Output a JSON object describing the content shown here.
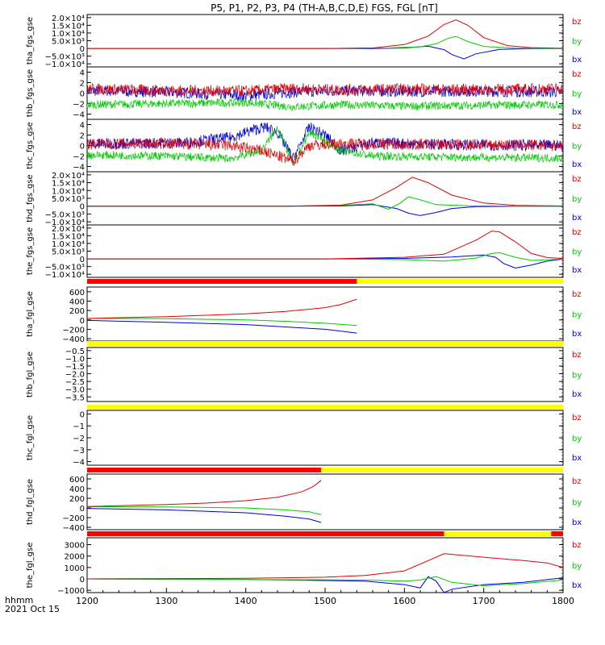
{
  "title": "P5, P1, P2, P3, P4 (TH-A,B,C,D,E) FGS, FGL [nT]",
  "footer": {
    "line1": "hhmm",
    "line2": "2021 Oct 15"
  },
  "colors": {
    "bz": "#e00000",
    "by": "#00cc00",
    "bx": "#0000dd",
    "red_bar": "#ff0000",
    "yellow_bar": "#ffff00",
    "axis": "#000000"
  },
  "chart_data": [
    {
      "type": "line",
      "id": "tha_fgs",
      "ylabel": "tha_fgs_gse",
      "xlim": [
        1200,
        1800
      ],
      "ylim": [
        -12000,
        22000
      ],
      "yticks": [
        -10000,
        -5000,
        0,
        5000,
        10000,
        15000,
        20000
      ],
      "ytick_labels": [
        "−1.0×10⁴",
        "−5.0×10³",
        "0",
        "5.0×10³",
        "1.0×10⁴",
        "1.5×10⁴",
        "2.0×10⁴"
      ],
      "series": [
        {
          "name": "bx",
          "x": [
            1200,
            1500,
            1560,
            1600,
            1630,
            1650,
            1660,
            1675,
            1690,
            1720,
            1760,
            1800
          ],
          "y": [
            0,
            0,
            -150,
            300,
            1500,
            -800,
            -4000,
            -6800,
            -3500,
            -600,
            -100,
            0
          ]
        },
        {
          "name": "by",
          "x": [
            1200,
            1500,
            1580,
            1620,
            1640,
            1655,
            1665,
            1680,
            1700,
            1740,
            1800
          ],
          "y": [
            0,
            0,
            300,
            1000,
            3000,
            6500,
            7800,
            4500,
            1300,
            200,
            0
          ]
        },
        {
          "name": "bz",
          "x": [
            1200,
            1500,
            1560,
            1600,
            1630,
            1650,
            1665,
            1680,
            1700,
            1730,
            1760,
            1800
          ],
          "y": [
            0,
            0,
            300,
            2500,
            8000,
            15500,
            18500,
            15000,
            7000,
            1800,
            500,
            100
          ]
        }
      ]
    },
    {
      "type": "line",
      "id": "thb_fgs",
      "ylabel": "thb_fgs_gse",
      "xlim": [
        1200,
        1800
      ],
      "ylim": [
        -5,
        5
      ],
      "yticks": [
        -4,
        -2,
        0,
        2,
        4
      ],
      "ytick_labels": [
        "−4",
        "−2",
        "0",
        "2",
        "4"
      ],
      "series": [
        {
          "name": "bx",
          "x": [
            1200,
            1300,
            1400,
            1460,
            1520,
            1600,
            1700,
            1800
          ],
          "y": [
            0.5,
            0.2,
            -0.5,
            0.2,
            0.5,
            0.3,
            0.4,
            0.2
          ]
        },
        {
          "name": "by",
          "x": [
            1200,
            1300,
            1400,
            1460,
            1520,
            1600,
            1700,
            1800
          ],
          "y": [
            -2.2,
            -2.0,
            -1.8,
            -2.6,
            -2.2,
            -2.5,
            -2.3,
            -2.2
          ]
        },
        {
          "name": "bz",
          "x": [
            1200,
            1300,
            1400,
            1460,
            1520,
            1600,
            1700,
            1800
          ],
          "y": [
            0.8,
            0.5,
            0.4,
            0.9,
            0.6,
            0.8,
            0.6,
            0.9
          ]
        }
      ]
    },
    {
      "type": "line",
      "id": "thc_fgs",
      "ylabel": "thc_fgs_gse",
      "xlim": [
        1200,
        1800
      ],
      "ylim": [
        -5,
        5
      ],
      "yticks": [
        -4,
        -2,
        0,
        2,
        4
      ],
      "ytick_labels": [
        "−4",
        "−2",
        "0",
        "2",
        "4"
      ],
      "series": [
        {
          "name": "bx",
          "x": [
            1200,
            1320,
            1380,
            1410,
            1425,
            1440,
            1460,
            1480,
            1500,
            1520,
            1560,
            1650,
            1800
          ],
          "y": [
            0.3,
            0.5,
            1.5,
            3.0,
            3.5,
            2.5,
            -2.5,
            3.5,
            2.0,
            -1.0,
            0.5,
            0.2,
            0.0
          ]
        },
        {
          "name": "by",
          "x": [
            1200,
            1300,
            1380,
            1420,
            1440,
            1460,
            1480,
            1500,
            1520,
            1560,
            1650,
            1800
          ],
          "y": [
            -1.8,
            -2.0,
            -2.5,
            -1.0,
            3.5,
            -3.5,
            2.5,
            1.0,
            -1.0,
            -2.0,
            -2.2,
            -2.4
          ]
        },
        {
          "name": "bz",
          "x": [
            1200,
            1300,
            1380,
            1420,
            1440,
            1460,
            1480,
            1520,
            1560,
            1650,
            1800
          ],
          "y": [
            0.3,
            0.4,
            0.0,
            -1.0,
            -2.0,
            -3.0,
            0.0,
            0.4,
            0.3,
            0.2,
            0.0
          ]
        }
      ]
    },
    {
      "type": "line",
      "id": "thd_fgs",
      "ylabel": "thd_fgs_gse",
      "xlim": [
        1200,
        1800
      ],
      "ylim": [
        -12000,
        22000
      ],
      "yticks": [
        -10000,
        -5000,
        0,
        5000,
        10000,
        15000,
        20000
      ],
      "ytick_labels": [
        "−1.0×10⁴",
        "−5.0×10³",
        "0",
        "5.0×10³",
        "1.0×10⁴",
        "1.5×10⁴",
        "2.0×10⁴"
      ],
      "series": [
        {
          "name": "bx",
          "x": [
            1200,
            1450,
            1520,
            1560,
            1590,
            1605,
            1620,
            1640,
            1660,
            1690,
            1740,
            1800
          ],
          "y": [
            0,
            0,
            100,
            1000,
            -1500,
            -4500,
            -6000,
            -4000,
            -1500,
            -300,
            -50,
            0
          ]
        },
        {
          "name": "by",
          "x": [
            1200,
            1450,
            1520,
            1560,
            1580,
            1595,
            1605,
            1620,
            1640,
            1680,
            1740,
            1800
          ],
          "y": [
            0,
            0,
            500,
            1500,
            -2000,
            2000,
            6000,
            4000,
            1000,
            200,
            0,
            0
          ]
        },
        {
          "name": "bz",
          "x": [
            1200,
            1450,
            1520,
            1560,
            1590,
            1610,
            1630,
            1660,
            1700,
            1740,
            1800
          ],
          "y": [
            0,
            0,
            600,
            4000,
            12000,
            18500,
            15000,
            7000,
            2000,
            500,
            100
          ]
        }
      ]
    },
    {
      "type": "line",
      "id": "the_fgs",
      "ylabel": "the_fgs_gse",
      "xlim": [
        1200,
        1800
      ],
      "ylim": [
        -12000,
        22000
      ],
      "yticks": [
        -10000,
        -5000,
        0,
        5000,
        10000,
        15000,
        20000
      ],
      "ytick_labels": [
        "−1.0×10⁴",
        "−5.0×10³",
        "0",
        "5.0×10³",
        "1.0×10⁴",
        "1.5×10⁴",
        "2.0×10⁴"
      ],
      "series": [
        {
          "name": "bx",
          "x": [
            1200,
            1500,
            1600,
            1660,
            1700,
            1715,
            1725,
            1740,
            1760,
            1780,
            1800
          ],
          "y": [
            0,
            0,
            300,
            1200,
            2500,
            1000,
            -3000,
            -6000,
            -4000,
            -1500,
            -200
          ]
        },
        {
          "name": "by",
          "x": [
            1200,
            1500,
            1600,
            1650,
            1690,
            1710,
            1720,
            1740,
            1760,
            1800
          ],
          "y": [
            0,
            0,
            -500,
            -1500,
            500,
            3500,
            4000,
            1000,
            -1000,
            -200
          ]
        },
        {
          "name": "bz",
          "x": [
            1200,
            1500,
            1600,
            1650,
            1690,
            1710,
            1720,
            1740,
            1760,
            1780,
            1800
          ],
          "y": [
            0,
            0,
            1000,
            3000,
            12000,
            18000,
            17500,
            11000,
            3500,
            800,
            300
          ]
        }
      ]
    },
    {
      "type": "line",
      "id": "tha_fgl",
      "ylabel": "tha_fgl_gse",
      "xlim": [
        1200,
        1800
      ],
      "ylim": [
        -450,
        700
      ],
      "yticks": [
        -400,
        -200,
        0,
        200,
        400,
        600
      ],
      "ytick_labels": [
        "−400",
        "−200",
        "0",
        "200",
        "400",
        "600"
      ],
      "status_bar": {
        "red_end": 1540
      },
      "series": [
        {
          "name": "bx",
          "x": [
            1200,
            1300,
            1400,
            1450,
            1500,
            1540
          ],
          "y": [
            -10,
            -50,
            -100,
            -150,
            -200,
            -280
          ]
        },
        {
          "name": "by",
          "x": [
            1200,
            1300,
            1400,
            1450,
            1500,
            1540
          ],
          "y": [
            30,
            25,
            0,
            -30,
            -70,
            -120
          ]
        },
        {
          "name": "bz",
          "x": [
            1200,
            1300,
            1350,
            1400,
            1450,
            1500,
            1520,
            1540
          ],
          "y": [
            30,
            70,
            100,
            130,
            180,
            260,
            330,
            440
          ]
        }
      ]
    },
    {
      "type": "line",
      "id": "thb_fgl",
      "ylabel": "thb_fgl_gse",
      "xlim": [
        1200,
        1800
      ],
      "ylim": [
        -3.8,
        -0.3
      ],
      "yticks": [
        -3.5,
        -3.0,
        -2.5,
        -2.0,
        -1.5,
        -1.0,
        -0.5
      ],
      "ytick_labels": [
        "−3.5",
        "−3.0",
        "−2.5",
        "−2.0",
        "−1.5",
        "−1.0",
        "−0.5"
      ],
      "status_bar": {
        "red_end": 1200
      },
      "series": []
    },
    {
      "type": "line",
      "id": "thc_fgl",
      "ylabel": "thc_fgl_gse",
      "xlim": [
        1200,
        1800
      ],
      "ylim": [
        -4.3,
        0.3
      ],
      "yticks": [
        -4,
        -3,
        -2,
        -1,
        0
      ],
      "ytick_labels": [
        "−4",
        "−3",
        "−2",
        "−1",
        "0"
      ],
      "status_bar": {
        "red_end": 1200
      },
      "series": []
    },
    {
      "type": "line",
      "id": "thd_fgl",
      "ylabel": "thd_fgl_gse",
      "xlim": [
        1200,
        1800
      ],
      "ylim": [
        -450,
        700
      ],
      "yticks": [
        -400,
        -200,
        0,
        200,
        400,
        600
      ],
      "ytick_labels": [
        "−400",
        "−200",
        "0",
        "200",
        "400",
        "600"
      ],
      "status_bar": {
        "red_end": 1495
      },
      "series": [
        {
          "name": "bx",
          "x": [
            1200,
            1300,
            1400,
            1450,
            1480,
            1495
          ],
          "y": [
            -10,
            -40,
            -100,
            -170,
            -230,
            -300
          ]
        },
        {
          "name": "by",
          "x": [
            1200,
            1300,
            1400,
            1450,
            1480,
            1495
          ],
          "y": [
            25,
            20,
            0,
            -40,
            -80,
            -140
          ]
        },
        {
          "name": "bz",
          "x": [
            1200,
            1300,
            1350,
            1400,
            1440,
            1470,
            1485,
            1495
          ],
          "y": [
            30,
            70,
            100,
            150,
            220,
            330,
            440,
            570
          ]
        }
      ]
    },
    {
      "type": "line",
      "id": "the_fgl",
      "ylabel": "the_fgl_gse",
      "xlim": [
        1200,
        1800
      ],
      "ylim": [
        -1200,
        3600
      ],
      "yticks": [
        -1000,
        0,
        1000,
        2000,
        3000
      ],
      "ytick_labels": [
        "−1000",
        "0",
        "1000",
        "2000",
        "3000"
      ],
      "status_bar": {
        "red_end": 1650,
        "red_tail_start": 1785
      },
      "series": [
        {
          "name": "bx",
          "x": [
            1200,
            1400,
            1550,
            1600,
            1620,
            1630,
            1640,
            1650,
            1660,
            1700,
            1750,
            1800
          ],
          "y": [
            0,
            -50,
            -200,
            -500,
            -800,
            200,
            -200,
            -1200,
            -900,
            -500,
            -300,
            100
          ]
        },
        {
          "name": "by",
          "x": [
            1200,
            1400,
            1550,
            1600,
            1620,
            1640,
            1660,
            1700,
            1750,
            1800
          ],
          "y": [
            0,
            -50,
            -100,
            -200,
            -100,
            200,
            -300,
            -600,
            -400,
            -100
          ]
        },
        {
          "name": "bz",
          "x": [
            1200,
            1400,
            1500,
            1550,
            1600,
            1630,
            1650,
            1700,
            1750,
            1780,
            1800
          ],
          "y": [
            0,
            50,
            150,
            300,
            700,
            1600,
            2200,
            1900,
            1600,
            1400,
            1000
          ]
        }
      ]
    }
  ],
  "legend": [
    "bz",
    "by",
    "bx"
  ],
  "xaxis": {
    "ticks": [
      1200,
      1300,
      1400,
      1500,
      1600,
      1700,
      1800
    ],
    "tick_labels": [
      "1200",
      "1300",
      "1400",
      "1500",
      "1600",
      "1700",
      "1800"
    ]
  }
}
